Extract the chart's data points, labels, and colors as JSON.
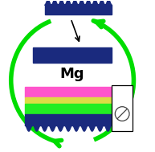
{
  "bg_color": "#ffffff",
  "dark_blue": "#1a2a7e",
  "pink_color": "#ff55cc",
  "yellow_color": "#dddd44",
  "green_color": "#22ee22",
  "arrow_green": "#00dd00",
  "arrow_lw": 4.0,
  "arrow_mutation_scale": 14
}
